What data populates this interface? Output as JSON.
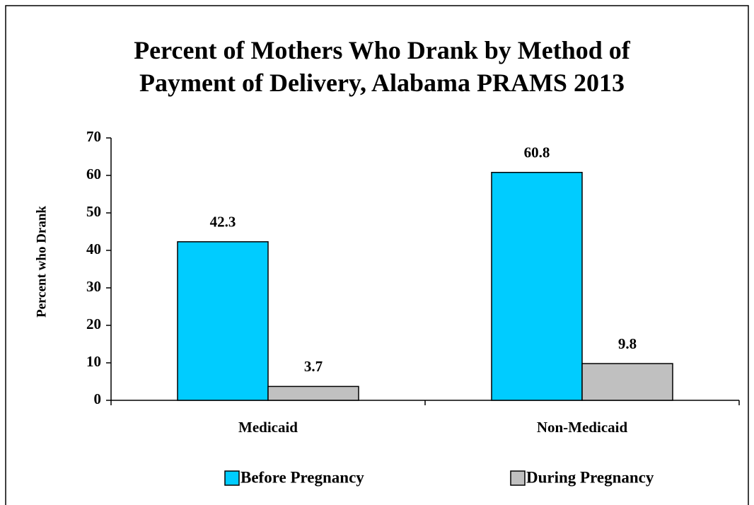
{
  "chart_data": {
    "type": "bar",
    "title": "Percent of Mothers Who Drank by Method of Payment of Delivery, Alabama PRAMS 2013",
    "y_label": "Percent who Drank",
    "categories": [
      "Medicaid",
      "Non-Medicaid"
    ],
    "series": [
      {
        "name": "Before Pregnancy",
        "color": "#00ccff",
        "values": [
          42.3,
          60.8
        ]
      },
      {
        "name": "During Pregnancy",
        "color": "#c0c0c0",
        "values": [
          3.7,
          9.8
        ]
      }
    ],
    "ylim": [
      0,
      70
    ],
    "yticks": [
      0,
      10,
      20,
      30,
      40,
      50,
      60,
      70
    ],
    "grid": false,
    "legend": "bottom"
  }
}
